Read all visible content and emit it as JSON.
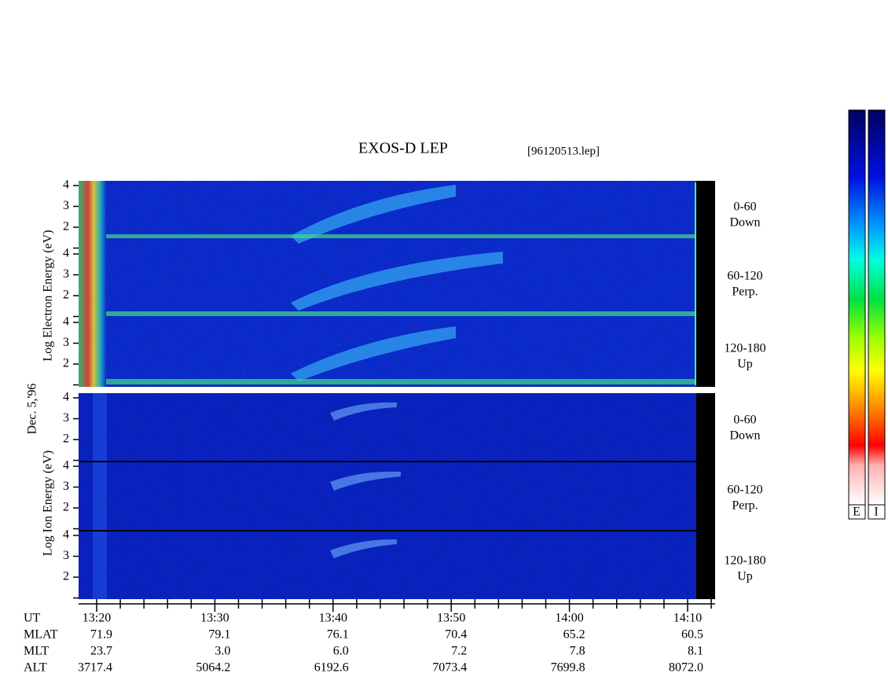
{
  "title": "EXOS-D LEP",
  "file": "[96120513.lep]",
  "date": "Dec. 5,'96",
  "energy_ticks": [
    2,
    3,
    4
  ],
  "electron": {
    "axis_label": "Log Electron Energy (eV)",
    "panels": [
      {
        "range": "0-60",
        "direction": "Down"
      },
      {
        "range": "60-120",
        "direction": "Perp."
      },
      {
        "range": "120-180",
        "direction": "Up"
      }
    ]
  },
  "ion": {
    "axis_label": "Log Ion Energy (eV)",
    "panels": [
      {
        "range": "0-60",
        "direction": "Down"
      },
      {
        "range": "60-120",
        "direction": "Perp."
      },
      {
        "range": "120-180",
        "direction": "Up"
      }
    ]
  },
  "colorbars": [
    "E",
    "I"
  ],
  "orbit_table": {
    "rows": [
      {
        "label": "UT",
        "values": [
          "13:20",
          "13:30",
          "13:40",
          "13:50",
          "14:00",
          "14:10"
        ]
      },
      {
        "label": "MLAT",
        "values": [
          "71.9",
          "79.1",
          "76.1",
          "70.4",
          "65.2",
          "60.5"
        ]
      },
      {
        "label": "MLT",
        "values": [
          "23.7",
          "3.0",
          "6.0",
          "7.2",
          "7.8",
          "8.1"
        ]
      },
      {
        "label": "ALT",
        "values": [
          "3717.4",
          "5064.2",
          "6192.6",
          "7073.4",
          "7699.8",
          "8072.0"
        ]
      }
    ]
  }
}
